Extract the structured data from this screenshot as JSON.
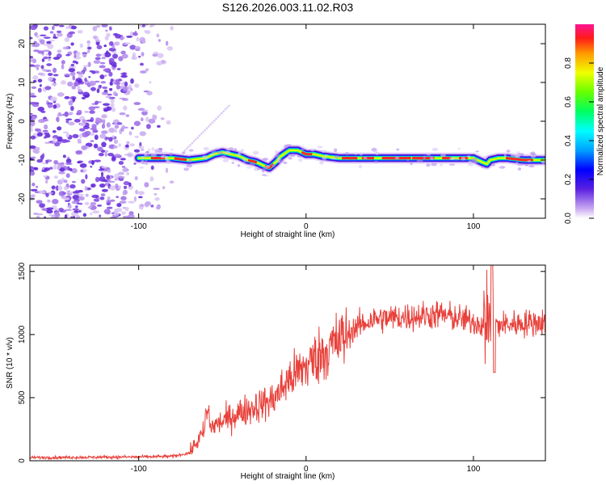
{
  "title": "S126.2026.003.11.02.R03",
  "chart_data": [
    {
      "type": "heatmap",
      "xlabel": "Height of straight line (km)",
      "ylabel": "Frequency (Hz)",
      "xlim": [
        -165,
        143
      ],
      "ylim": [
        -25,
        25
      ],
      "xticks": [
        -100,
        0,
        100
      ],
      "yticks": [
        -20,
        -10,
        0,
        10,
        20
      ],
      "colorbar": {
        "label": "Normalized spectral amplitude",
        "range": [
          0,
          1
        ],
        "ticks": [
          "0.0",
          "0.2",
          "0.4",
          "0.6",
          "0.8"
        ]
      },
      "ridge": {
        "start_x": -100,
        "x": [
          -100,
          -90,
          -80,
          -70,
          -60,
          -55,
          -50,
          -45,
          -40,
          -35,
          -30,
          -25,
          -22,
          -18,
          -15,
          -10,
          -5,
          0,
          5,
          10,
          20,
          40,
          60,
          80,
          90,
          100,
          105,
          108,
          110,
          115,
          120,
          130,
          143
        ],
        "y": [
          -9.5,
          -9.5,
          -9.5,
          -10,
          -9.5,
          -8.5,
          -8,
          -8.5,
          -9,
          -10,
          -10.5,
          -11.5,
          -12,
          -10.5,
          -9,
          -7.5,
          -7.5,
          -8.5,
          -8.5,
          -9,
          -9.5,
          -9.5,
          -9.5,
          -9.5,
          -9.5,
          -9.5,
          -10.5,
          -11,
          -10,
          -9.5,
          -9.5,
          -10,
          -10
        ]
      }
    },
    {
      "type": "line",
      "xlabel": "Height of straight line (km)",
      "ylabel": "SNR (10 * v/v)",
      "xlim": [
        -165,
        143
      ],
      "ylim": [
        0,
        1550
      ],
      "xticks": [
        -100,
        0,
        100
      ],
      "yticks": [
        0,
        500,
        1000,
        1500
      ],
      "series": [
        {
          "color": "#e8403a",
          "trend": {
            "x": [
              -165,
              -100,
              -80,
              -70,
              -65,
              -60,
              -50,
              -40,
              -30,
              -20,
              -15,
              -10,
              0,
              10,
              20,
              30,
              40,
              60,
              80,
              100,
              110,
              120,
              143
            ],
            "y": [
              25,
              30,
              35,
              60,
              150,
              250,
              310,
              380,
              430,
              480,
              560,
              650,
              750,
              860,
              950,
              1060,
              1120,
              1140,
              1160,
              1100,
              1070,
              1080,
              1100
            ]
          }
        }
      ]
    }
  ]
}
